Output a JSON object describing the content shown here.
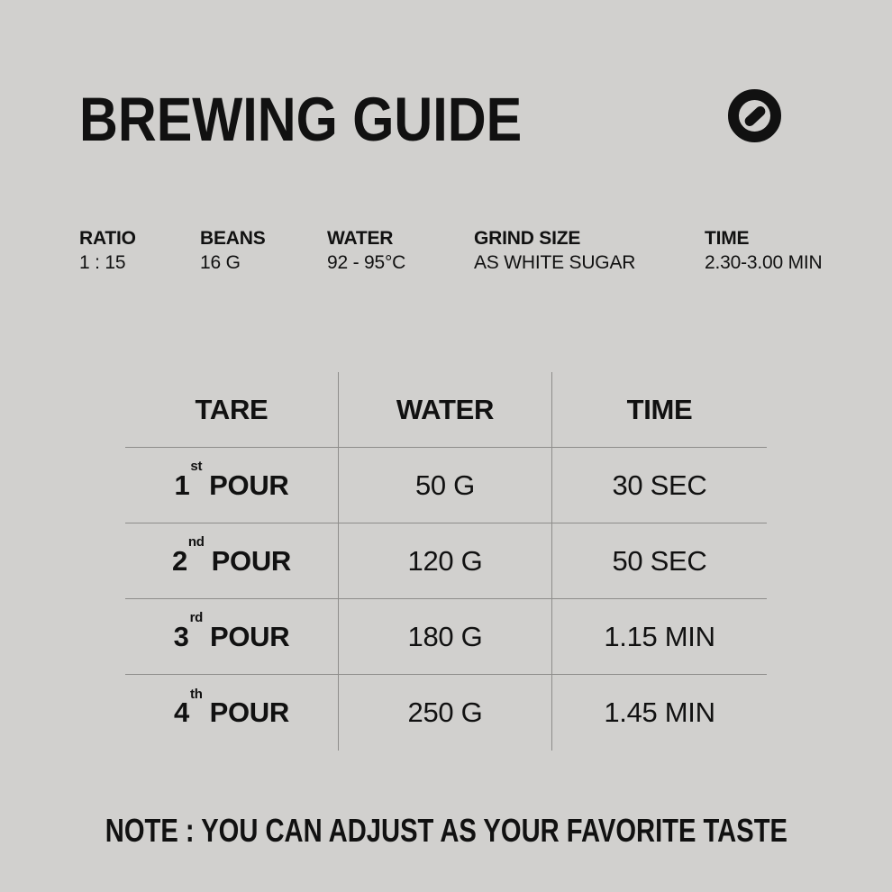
{
  "colors": {
    "background": "#d1d0ce",
    "text": "#111111",
    "line": "#8e8d8b"
  },
  "header": {
    "title": "BREWING GUIDE",
    "logo_icon": "circle-slash-icon"
  },
  "specs": [
    {
      "label": "RATIO",
      "value": "1 : 15"
    },
    {
      "label": "BEANS",
      "value": "16 G"
    },
    {
      "label": "WATER",
      "value": "92 - 95°C"
    },
    {
      "label": "GRIND SIZE",
      "value": "AS WHITE SUGAR"
    },
    {
      "label": "TIME",
      "value": "2.30-3.00 MIN"
    }
  ],
  "table": {
    "headers": [
      "TARE",
      "WATER",
      "TIME"
    ],
    "rows": [
      {
        "ordinal": "1",
        "suffix": "st",
        "label": "POUR",
        "water": "50 G",
        "time": "30 SEC"
      },
      {
        "ordinal": "2",
        "suffix": "nd",
        "label": "POUR",
        "water": "120 G",
        "time": "50 SEC"
      },
      {
        "ordinal": "3",
        "suffix": "rd",
        "label": "POUR",
        "water": "180 G",
        "time": "1.15 MIN"
      },
      {
        "ordinal": "4",
        "suffix": "th",
        "label": "POUR",
        "water": "250 G",
        "time": "1.45 MIN"
      }
    ]
  },
  "note": "NOTE : YOU CAN ADJUST AS YOUR FAVORITE TASTE"
}
